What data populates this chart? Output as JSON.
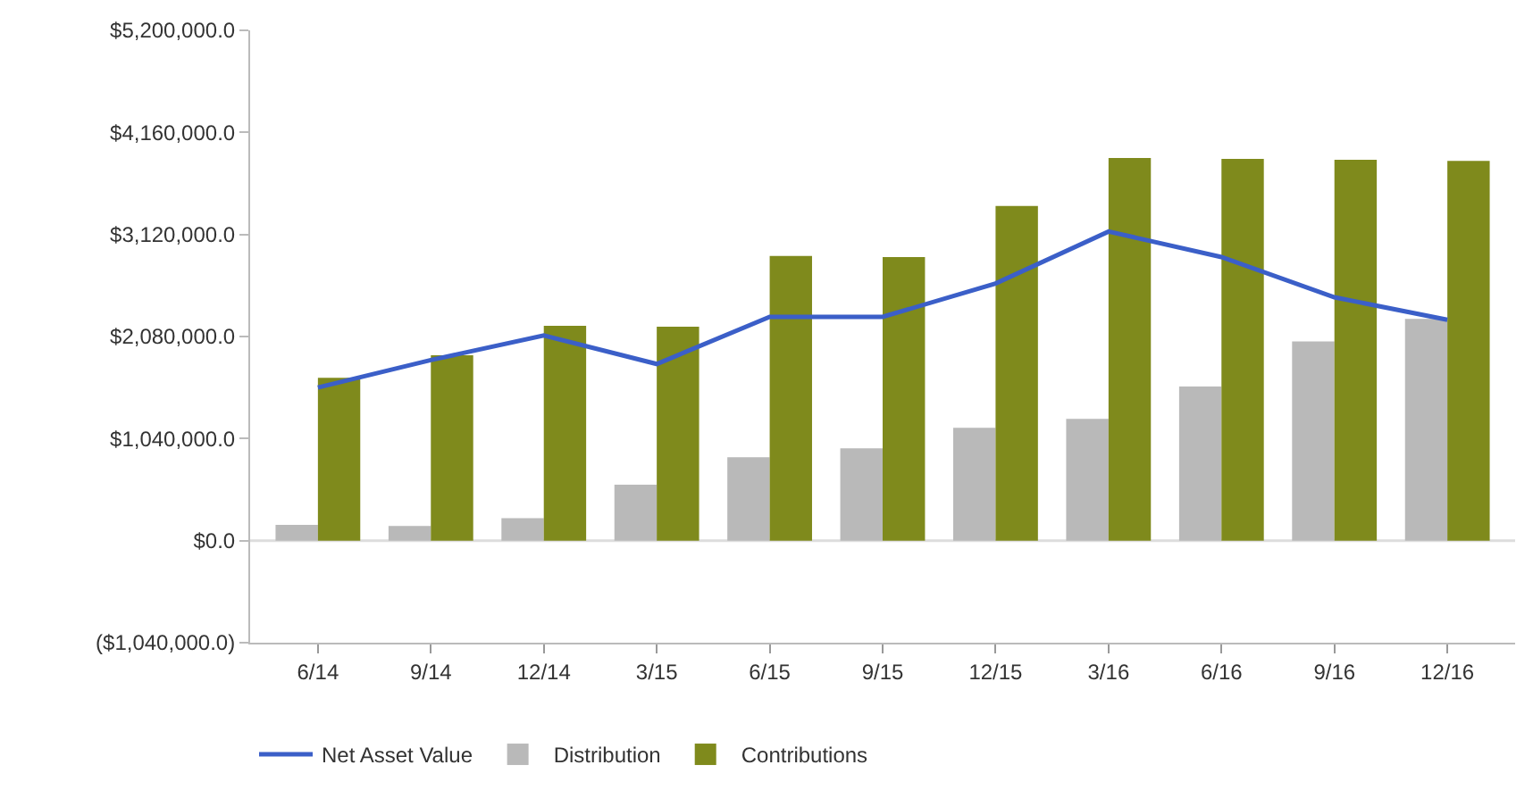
{
  "chart_data": {
    "type": "bar",
    "categories": [
      "6/14",
      "9/14",
      "12/14",
      "3/15",
      "6/15",
      "9/15",
      "12/15",
      "3/16",
      "6/16",
      "9/16",
      "12/16"
    ],
    "series": [
      {
        "name": "Net Asset Value",
        "type": "line",
        "color": "#3b5fc8",
        "values": [
          1560000,
          1840000,
          2090000,
          1800000,
          2280000,
          2280000,
          2620000,
          3150000,
          2890000,
          2480000,
          2250000
        ]
      },
      {
        "name": "Distribution",
        "color": "#b9b9b9",
        "values": [
          160000,
          150000,
          230000,
          570000,
          850000,
          940000,
          1150000,
          1240000,
          1570000,
          2030000,
          2260000
        ]
      },
      {
        "name": "Contributions",
        "color": "#7f8a1c",
        "values": [
          1660000,
          1890000,
          2190000,
          2180000,
          2900000,
          2890000,
          3410000,
          3900000,
          3890000,
          3880000,
          3870000
        ]
      }
    ],
    "ylim": [
      -1040000,
      5200000
    ],
    "yticks": [
      {
        "value": -1040000,
        "label": "($1,040,000.0)"
      },
      {
        "value": 0,
        "label": "$0.0"
      },
      {
        "value": 1040000,
        "label": "$1,040,000.0"
      },
      {
        "value": 2080000,
        "label": "$2,080,000.0"
      },
      {
        "value": 3120000,
        "label": "$3,120,000.0"
      },
      {
        "value": 4160000,
        "label": "$4,160,000.0"
      },
      {
        "value": 5200000,
        "label": "$5,200,000.0"
      }
    ],
    "ref_lines": [
      {
        "axis": "y",
        "value": 0,
        "color": "#dddddd"
      }
    ],
    "legend": "bottom left"
  }
}
